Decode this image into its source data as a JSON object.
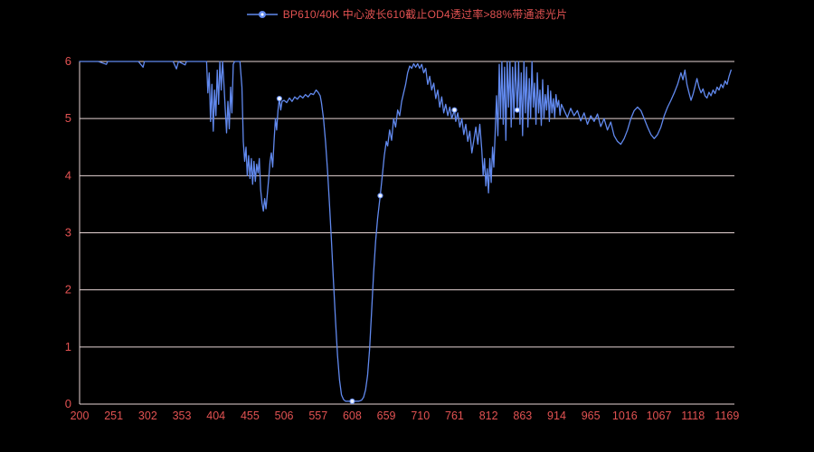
{
  "style": {
    "background": "#000000",
    "grid_color": "#e6d4d4",
    "axis_text_color": "#e25252",
    "title_color": "#e25252",
    "line_color": "#6189ee",
    "marker_fill": "#eef3ff"
  },
  "legend": {
    "title": "BP610/40K 中心波长610截止OD4透过率>88%带通滤光片",
    "marker_icon": "line-with-dot-icon"
  },
  "chart_data": {
    "type": "line",
    "title": "BP610/40K 中心波长610截止OD4透过率>88%带通滤光片",
    "xlabel": "",
    "ylabel": "",
    "xlim": [
      200,
      1180
    ],
    "ylim": [
      0,
      6
    ],
    "x_ticks": [
      200,
      251,
      302,
      353,
      404,
      455,
      506,
      557,
      608,
      659,
      710,
      761,
      812,
      863,
      914,
      965,
      1016,
      1067,
      1118,
      1169
    ],
    "y_ticks": [
      0,
      1,
      2,
      3,
      4,
      5,
      6
    ],
    "grid": "horizontal",
    "legend_position": "top-center",
    "series": [
      {
        "name": "BP610/40K 中心波长610截止OD4透过率>88%带通滤光片",
        "color": "#6189ee",
        "points": [
          [
            200,
            6
          ],
          [
            215,
            6
          ],
          [
            228,
            6
          ],
          [
            240,
            5.95
          ],
          [
            242,
            6
          ],
          [
            258,
            6
          ],
          [
            272,
            6
          ],
          [
            288,
            6
          ],
          [
            295,
            5.9
          ],
          [
            297,
            6
          ],
          [
            310,
            6
          ],
          [
            325,
            6
          ],
          [
            340,
            6
          ],
          [
            345,
            5.87
          ],
          [
            348,
            6
          ],
          [
            358,
            5.94
          ],
          [
            360,
            6
          ],
          [
            372,
            6
          ],
          [
            384,
            6
          ],
          [
            390,
            6
          ],
          [
            392,
            5.45
          ],
          [
            394,
            5.8
          ],
          [
            396,
            4.95
          ],
          [
            398,
            5.6
          ],
          [
            400,
            4.78
          ],
          [
            402,
            5.5
          ],
          [
            404,
            5.05
          ],
          [
            406,
            5.85
          ],
          [
            408,
            5.25
          ],
          [
            410,
            6
          ],
          [
            412,
            5.5
          ],
          [
            414,
            6
          ],
          [
            416,
            5.6
          ],
          [
            418,
            5.15
          ],
          [
            420,
            4.75
          ],
          [
            422,
            5.3
          ],
          [
            424,
            4.82
          ],
          [
            426,
            5.55
          ],
          [
            428,
            5.1
          ],
          [
            430,
            5.95
          ],
          [
            432,
            6
          ],
          [
            436,
            6
          ],
          [
            440,
            6
          ],
          [
            443,
            5.55
          ],
          [
            445,
            4.6
          ],
          [
            447,
            4.25
          ],
          [
            449,
            4.5
          ],
          [
            451,
            4.0
          ],
          [
            453,
            4.35
          ],
          [
            455,
            3.95
          ],
          [
            457,
            4.3
          ],
          [
            459,
            3.85
          ],
          [
            461,
            4.25
          ],
          [
            463,
            3.9
          ],
          [
            465,
            4.2
          ],
          [
            467,
            4.05
          ],
          [
            469,
            4.3
          ],
          [
            471,
            3.75
          ],
          [
            473,
            3.52
          ],
          [
            475,
            3.38
          ],
          [
            477,
            3.6
          ],
          [
            479,
            3.42
          ],
          [
            481,
            3.68
          ],
          [
            483,
            3.95
          ],
          [
            485,
            4.25
          ],
          [
            487,
            4.4
          ],
          [
            489,
            4.15
          ],
          [
            491,
            4.6
          ],
          [
            493,
            5.0
          ],
          [
            495,
            4.8
          ],
          [
            497,
            5.15
          ],
          [
            499,
            5.35
          ],
          [
            501,
            5.15
          ],
          [
            503,
            5.3
          ],
          [
            506,
            5.32
          ],
          [
            510,
            5.28
          ],
          [
            514,
            5.36
          ],
          [
            518,
            5.3
          ],
          [
            522,
            5.38
          ],
          [
            526,
            5.34
          ],
          [
            530,
            5.4
          ],
          [
            534,
            5.36
          ],
          [
            538,
            5.42
          ],
          [
            542,
            5.38
          ],
          [
            546,
            5.44
          ],
          [
            550,
            5.42
          ],
          [
            554,
            5.5
          ],
          [
            557,
            5.46
          ],
          [
            560,
            5.4
          ],
          [
            562,
            5.28
          ],
          [
            565,
            5.0
          ],
          [
            568,
            4.6
          ],
          [
            571,
            4.1
          ],
          [
            574,
            3.5
          ],
          [
            577,
            2.85
          ],
          [
            580,
            2.15
          ],
          [
            583,
            1.45
          ],
          [
            586,
            0.85
          ],
          [
            589,
            0.42
          ],
          [
            592,
            0.16
          ],
          [
            595,
            0.08
          ],
          [
            598,
            0.05
          ],
          [
            602,
            0.05
          ],
          [
            606,
            0.05
          ],
          [
            610,
            0.05
          ],
          [
            614,
            0.05
          ],
          [
            618,
            0.05
          ],
          [
            622,
            0.07
          ],
          [
            625,
            0.12
          ],
          [
            628,
            0.25
          ],
          [
            631,
            0.5
          ],
          [
            634,
            0.95
          ],
          [
            637,
            1.6
          ],
          [
            640,
            2.3
          ],
          [
            643,
            2.85
          ],
          [
            646,
            3.25
          ],
          [
            650,
            3.65
          ],
          [
            653,
            4.0
          ],
          [
            656,
            4.35
          ],
          [
            659,
            4.6
          ],
          [
            661,
            4.52
          ],
          [
            664,
            4.8
          ],
          [
            667,
            4.62
          ],
          [
            670,
            5.0
          ],
          [
            673,
            4.85
          ],
          [
            676,
            5.15
          ],
          [
            679,
            5.05
          ],
          [
            682,
            5.3
          ],
          [
            685,
            5.45
          ],
          [
            688,
            5.6
          ],
          [
            691,
            5.8
          ],
          [
            694,
            5.92
          ],
          [
            697,
            5.88
          ],
          [
            700,
            5.96
          ],
          [
            703,
            5.9
          ],
          [
            706,
            5.96
          ],
          [
            709,
            5.88
          ],
          [
            712,
            5.95
          ],
          [
            715,
            5.8
          ],
          [
            718,
            5.88
          ],
          [
            721,
            5.6
          ],
          [
            724,
            5.74
          ],
          [
            727,
            5.5
          ],
          [
            730,
            5.62
          ],
          [
            733,
            5.35
          ],
          [
            736,
            5.5
          ],
          [
            739,
            5.2
          ],
          [
            742,
            5.38
          ],
          [
            745,
            5.1
          ],
          [
            748,
            5.25
          ],
          [
            751,
            5.05
          ],
          [
            754,
            5.2
          ],
          [
            757,
            5.0
          ],
          [
            761,
            5.15
          ],
          [
            763,
            4.95
          ],
          [
            766,
            5.1
          ],
          [
            769,
            4.85
          ],
          [
            772,
            5.0
          ],
          [
            775,
            4.72
          ],
          [
            778,
            4.9
          ],
          [
            781,
            4.6
          ],
          [
            784,
            4.78
          ],
          [
            787,
            4.4
          ],
          [
            790,
            4.62
          ],
          [
            793,
            4.85
          ],
          [
            796,
            4.55
          ],
          [
            799,
            4.9
          ],
          [
            802,
            4.45
          ],
          [
            804,
            4.0
          ],
          [
            806,
            4.3
          ],
          [
            808,
            3.82
          ],
          [
            810,
            4.12
          ],
          [
            812,
            3.7
          ],
          [
            814,
            4.3
          ],
          [
            816,
            3.88
          ],
          [
            818,
            4.5
          ],
          [
            820,
            4.15
          ],
          [
            822,
            4.75
          ],
          [
            824,
            5.4
          ],
          [
            826,
            4.7
          ],
          [
            828,
            5.95
          ],
          [
            830,
            5.0
          ],
          [
            832,
            6
          ],
          [
            834,
            4.9
          ],
          [
            836,
            5.9
          ],
          [
            838,
            4.62
          ],
          [
            840,
            6
          ],
          [
            842,
            5.2
          ],
          [
            844,
            6
          ],
          [
            846,
            4.85
          ],
          [
            848,
            5.9
          ],
          [
            850,
            5.0
          ],
          [
            852,
            6
          ],
          [
            855,
            5.15
          ],
          [
            857,
            6
          ],
          [
            859,
            4.9
          ],
          [
            861,
            5.8
          ],
          [
            863,
            4.7
          ],
          [
            865,
            6
          ],
          [
            867,
            5.1
          ],
          [
            869,
            5.9
          ],
          [
            871,
            4.85
          ],
          [
            873,
            5.7
          ],
          [
            875,
            5.0
          ],
          [
            877,
            6
          ],
          [
            879,
            5.2
          ],
          [
            881,
            5.62
          ],
          [
            883,
            4.9
          ],
          [
            885,
            5.8
          ],
          [
            887,
            5.1
          ],
          [
            889,
            5.5
          ],
          [
            891,
            4.88
          ],
          [
            893,
            5.68
          ],
          [
            895,
            5.0
          ],
          [
            897,
            5.42
          ],
          [
            899,
            5.15
          ],
          [
            901,
            5.58
          ],
          [
            903,
            4.95
          ],
          [
            905,
            5.48
          ],
          [
            907,
            5.1
          ],
          [
            909,
            5.35
          ],
          [
            911,
            5.02
          ],
          [
            913,
            5.42
          ],
          [
            915,
            5.2
          ],
          [
            917,
            5.32
          ],
          [
            919,
            5.06
          ],
          [
            921,
            5.25
          ],
          [
            925,
            5.15
          ],
          [
            930,
            5.02
          ],
          [
            935,
            5.18
          ],
          [
            940,
            5.05
          ],
          [
            945,
            5.14
          ],
          [
            950,
            4.96
          ],
          [
            955,
            5.1
          ],
          [
            960,
            4.9
          ],
          [
            965,
            5.05
          ],
          [
            970,
            4.95
          ],
          [
            975,
            5.08
          ],
          [
            980,
            4.86
          ],
          [
            985,
            5.0
          ],
          [
            990,
            4.8
          ],
          [
            995,
            4.94
          ],
          [
            1000,
            4.7
          ],
          [
            1005,
            4.6
          ],
          [
            1010,
            4.55
          ],
          [
            1015,
            4.65
          ],
          [
            1020,
            4.8
          ],
          [
            1025,
            5.0
          ],
          [
            1030,
            5.14
          ],
          [
            1035,
            5.2
          ],
          [
            1040,
            5.14
          ],
          [
            1045,
            5.0
          ],
          [
            1050,
            4.85
          ],
          [
            1055,
            4.72
          ],
          [
            1060,
            4.65
          ],
          [
            1065,
            4.72
          ],
          [
            1070,
            4.85
          ],
          [
            1075,
            5.05
          ],
          [
            1080,
            5.2
          ],
          [
            1085,
            5.32
          ],
          [
            1090,
            5.45
          ],
          [
            1095,
            5.6
          ],
          [
            1100,
            5.8
          ],
          [
            1103,
            5.68
          ],
          [
            1106,
            5.85
          ],
          [
            1109,
            5.6
          ],
          [
            1112,
            5.45
          ],
          [
            1115,
            5.32
          ],
          [
            1118,
            5.42
          ],
          [
            1121,
            5.56
          ],
          [
            1124,
            5.7
          ],
          [
            1127,
            5.55
          ],
          [
            1130,
            5.45
          ],
          [
            1133,
            5.52
          ],
          [
            1136,
            5.4
          ],
          [
            1139,
            5.36
          ],
          [
            1142,
            5.46
          ],
          [
            1145,
            5.4
          ],
          [
            1148,
            5.5
          ],
          [
            1151,
            5.44
          ],
          [
            1154,
            5.55
          ],
          [
            1157,
            5.5
          ],
          [
            1160,
            5.6
          ],
          [
            1163,
            5.54
          ],
          [
            1166,
            5.66
          ],
          [
            1169,
            5.6
          ],
          [
            1172,
            5.74
          ],
          [
            1175,
            5.85
          ]
        ],
        "markers": [
          [
            499,
            5.35
          ],
          [
            608,
            0.05
          ],
          [
            650,
            3.65
          ],
          [
            761,
            5.15
          ],
          [
            855,
            5.15
          ]
        ]
      }
    ]
  }
}
